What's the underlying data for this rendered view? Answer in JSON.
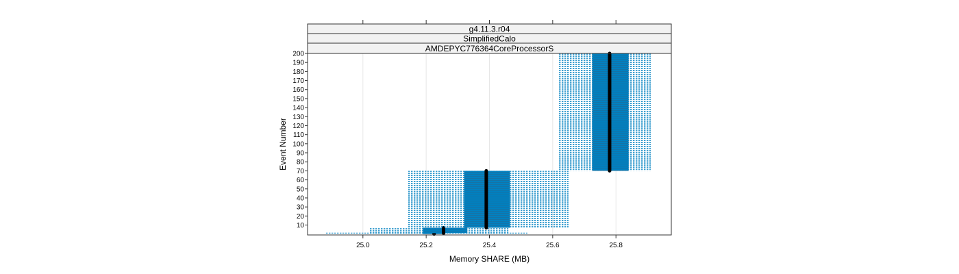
{
  "strips": [
    "g4.11.3.r04",
    "SimplifiedCalo",
    "AMDEPYC776364CoreProcessorS"
  ],
  "chart_data": {
    "type": "bar",
    "xlabel": "Memory SHARE (MB)",
    "ylabel": "Event Number",
    "xlim": [
      24.825,
      25.975
    ],
    "ylim": [
      -1,
      200
    ],
    "x_ticks": [
      "25.0",
      "25.2",
      "25.4",
      "25.6",
      "25.8"
    ],
    "x_tick_values": [
      25.0,
      25.2,
      25.4,
      25.6,
      25.8
    ],
    "y_ticks": [
      10,
      20,
      30,
      40,
      50,
      60,
      70,
      80,
      90,
      100,
      110,
      120,
      130,
      140,
      150,
      160,
      170,
      180,
      190,
      200
    ],
    "grid": true,
    "colors": {
      "box": "#0080c0",
      "median": "#000000",
      "panel_border": "#333333",
      "strip_bg": "#f2f2f2"
    },
    "series": [
      {
        "y_low": 0,
        "y_high": 1,
        "whisker_low": 24.88,
        "q1": 25.19,
        "median": 25.225,
        "q3": 25.26,
        "whisker_high": 25.52
      },
      {
        "y_low": 1,
        "y_high": 7,
        "whisker_low": 25.02,
        "q1": 25.19,
        "median": 25.255,
        "q3": 25.33,
        "whisker_high": 25.46
      },
      {
        "y_low": 7,
        "y_high": 70,
        "whisker_low": 25.14,
        "q1": 25.32,
        "median": 25.39,
        "q3": 25.465,
        "whisker_high": 25.65
      },
      {
        "y_low": 70,
        "y_high": 200,
        "whisker_low": 25.62,
        "q1": 25.725,
        "median": 25.78,
        "q3": 25.84,
        "whisker_high": 25.91
      }
    ]
  }
}
